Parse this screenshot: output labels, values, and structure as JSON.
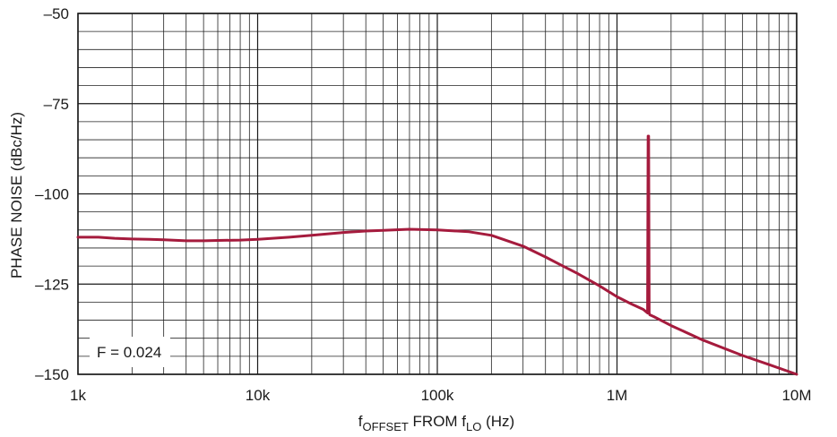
{
  "chart_data": {
    "type": "line",
    "xscale": "log",
    "xlim": [
      1000,
      10000000
    ],
    "ylim": [
      -150,
      -50
    ],
    "grid": true,
    "xlabel": {
      "prefix": "f",
      "prefix_sub": "OFFSET",
      "mid": " FROM f",
      "mid_sub": "LO",
      "suffix": " (Hz)"
    },
    "ylabel": "PHASE NOISE (dBc/Hz)",
    "x_ticks": [
      {
        "value": 1000,
        "label": "1k"
      },
      {
        "value": 10000,
        "label": "10k"
      },
      {
        "value": 100000,
        "label": "100k"
      },
      {
        "value": 1000000,
        "label": "1M"
      },
      {
        "value": 10000000,
        "label": "10M"
      }
    ],
    "y_ticks": [
      {
        "value": -50,
        "label": "–50"
      },
      {
        "value": -75,
        "label": "–75"
      },
      {
        "value": -100,
        "label": "–100"
      },
      {
        "value": -125,
        "label": "–125"
      },
      {
        "value": -150,
        "label": "–150"
      }
    ],
    "annotation": "F = 0.024",
    "line_color": "#a51b3d",
    "series": [
      {
        "x": [
          1000,
          1300,
          1600,
          2000,
          2500,
          3000,
          4000,
          5000,
          6000,
          8000,
          10000,
          15000,
          20000,
          30000,
          40000,
          50000,
          70000,
          100000,
          150000,
          200000,
          300000,
          400000,
          500000,
          600000,
          800000,
          1000000,
          1200000,
          1400000,
          1480000,
          1490000,
          1500000,
          1510000,
          1520000,
          1600000,
          2000000,
          3000000,
          5000000,
          7000000,
          10000000
        ],
        "y": [
          -112,
          -112,
          -112.3,
          -112.5,
          -112.6,
          -112.7,
          -113,
          -113,
          -112.9,
          -112.8,
          -112.6,
          -112,
          -111.5,
          -110.7,
          -110.3,
          -110.1,
          -109.8,
          -110,
          -110.5,
          -111.5,
          -114.5,
          -117.5,
          -120,
          -122,
          -125.5,
          -128.5,
          -130.5,
          -132,
          -133,
          -84,
          -84,
          -133,
          -133.5,
          -134,
          -136.5,
          -140.5,
          -144.8,
          -147.3,
          -150
        ]
      }
    ]
  }
}
